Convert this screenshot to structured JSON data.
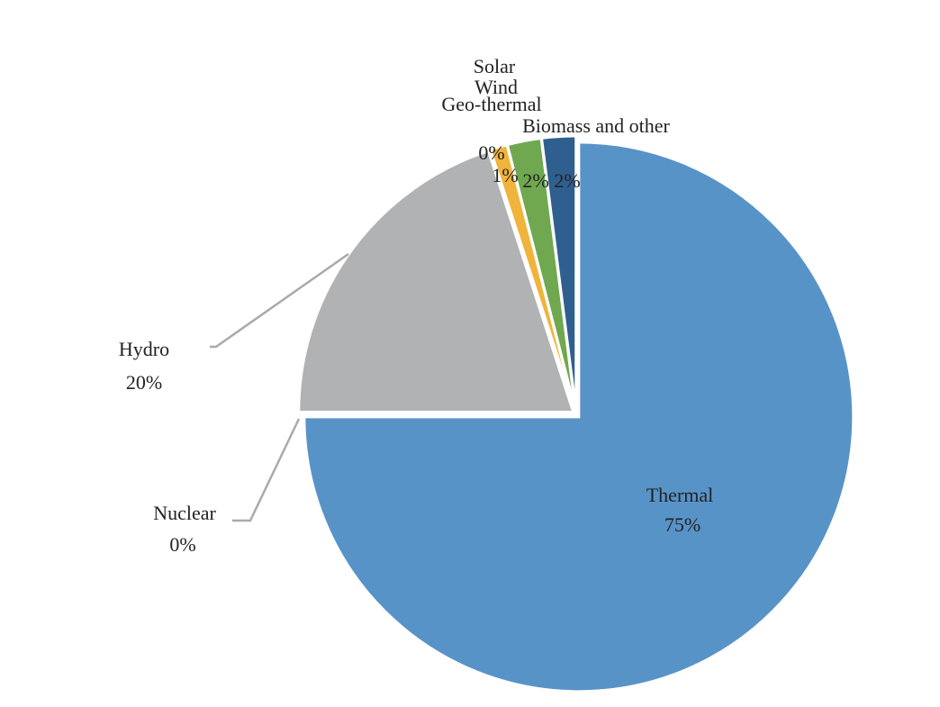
{
  "chart_data": {
    "type": "pie",
    "categories": [
      "Thermal",
      "Nuclear",
      "Hydro",
      "Solar",
      "Wind",
      "Geo-thermal",
      "Biomass and other"
    ],
    "values": [
      75,
      0,
      20,
      0,
      1,
      2,
      2
    ],
    "value_labels": [
      "75%",
      "0%",
      "20%",
      "0%",
      "1%",
      "2%",
      "2%"
    ],
    "colors": [
      "#5893c8",
      "#e9873a",
      "#b1b2b4",
      "#f5c542",
      "#f0b43c",
      "#6fa84f",
      "#2f5f8f"
    ]
  }
}
